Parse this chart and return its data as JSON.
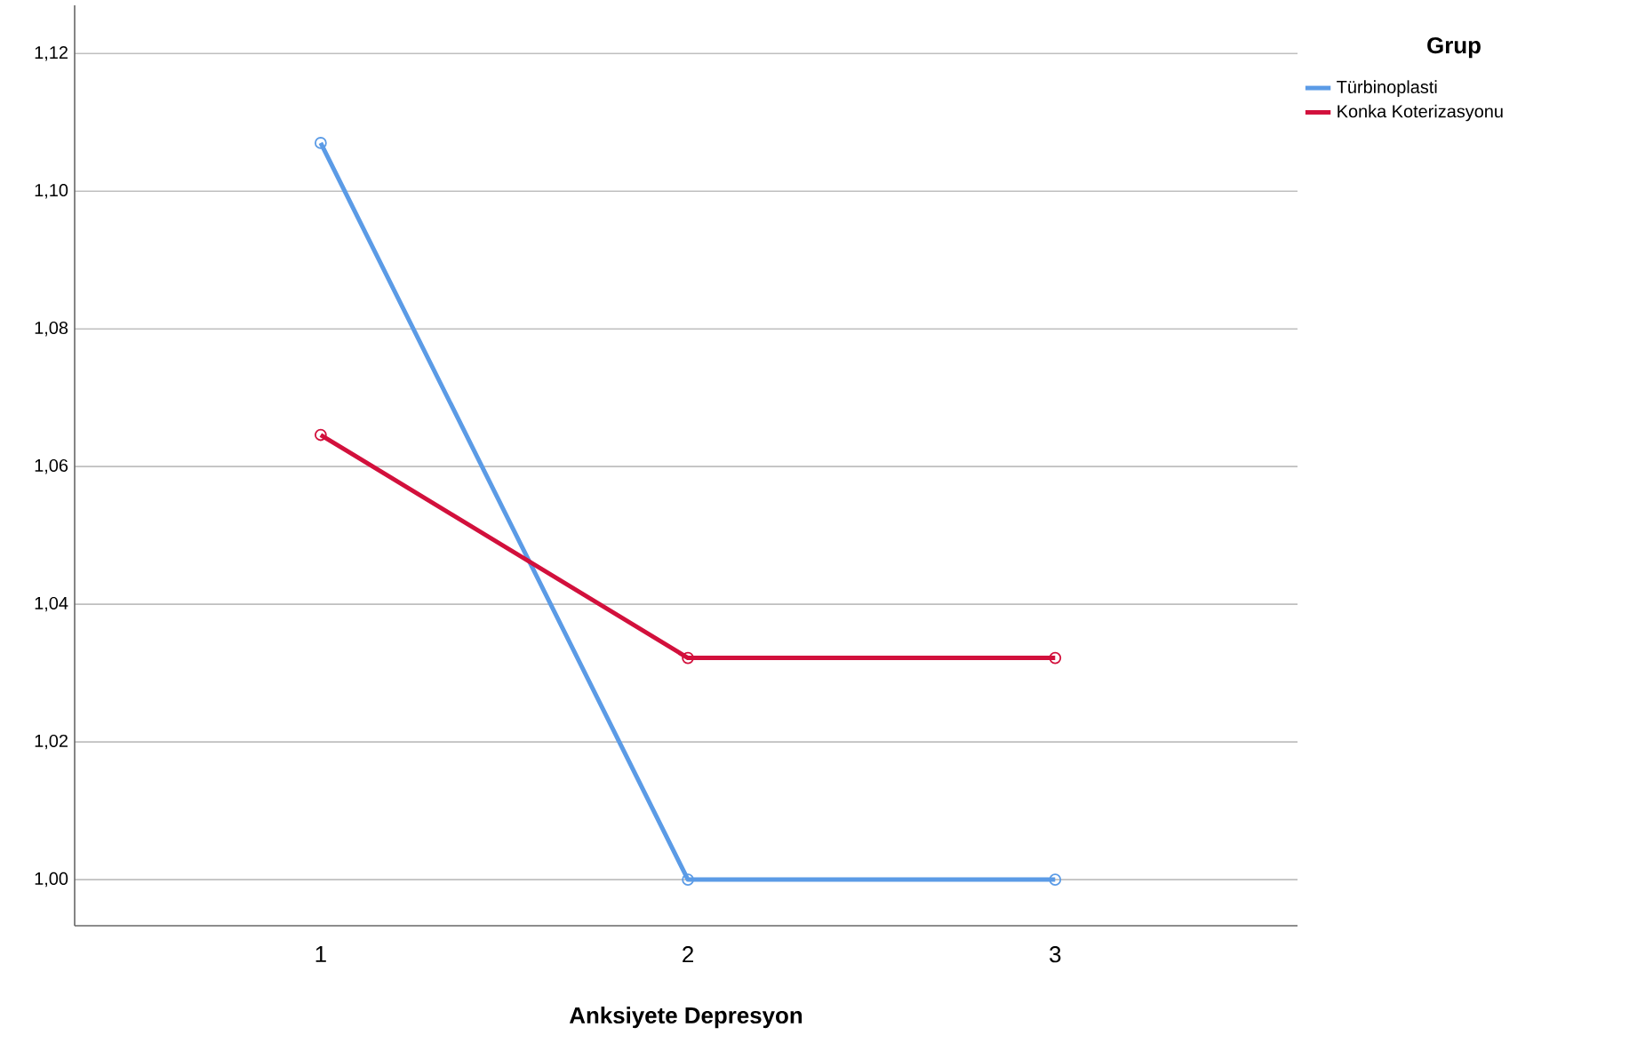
{
  "chart_data": {
    "type": "line",
    "xlabel": "Anksiyete Depresyon",
    "legend_title": "Grup",
    "categories": [
      "1",
      "2",
      "3"
    ],
    "series": [
      {
        "name": "Türbinoplasti",
        "color": "#5b9be6",
        "values": [
          1.107,
          1.0,
          1.0
        ]
      },
      {
        "name": "Konka Koterizasyonu",
        "color": "#d2103c",
        "values": [
          1.0646,
          1.0322,
          1.0322
        ]
      }
    ],
    "ylim": [
      0.9933,
      1.127
    ],
    "yticks": [
      {
        "value": 1.0,
        "label": "1,00"
      },
      {
        "value": 1.02,
        "label": "1,02"
      },
      {
        "value": 1.04,
        "label": "1,04"
      },
      {
        "value": 1.06,
        "label": "1,06"
      },
      {
        "value": 1.08,
        "label": "1,08"
      },
      {
        "value": 1.1,
        "label": "1,10"
      },
      {
        "value": 1.12,
        "label": "1,12"
      }
    ],
    "grid": "y",
    "legend": "top right",
    "marker": "circle",
    "line_style": "solid"
  }
}
